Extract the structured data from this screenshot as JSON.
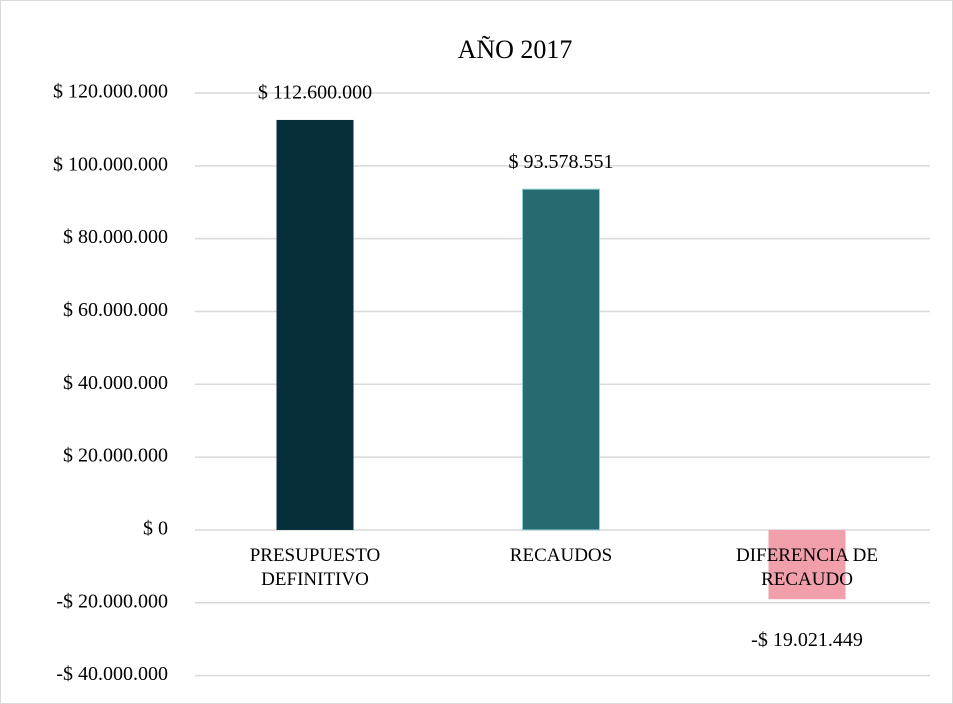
{
  "chart_data": {
    "type": "bar",
    "title": "AÑO 2017",
    "categories": [
      "PRESUPUESTO\nDEFINITIVO",
      "RECAUDOS",
      "DIFERENCIA DE\nRECAUDO"
    ],
    "values": [
      112600000,
      93578551,
      -19021449
    ],
    "value_labels": [
      "$ 112.600.000",
      "$ 93.578.551",
      "-$ 19.021.449"
    ],
    "colors": [
      "#062f3b",
      "#266b70",
      "#f19fab"
    ],
    "ylim": [
      -40000000,
      120000000
    ],
    "yticks": [
      {
        "value": -40000000,
        "label": "-$ 40.000.000"
      },
      {
        "value": -20000000,
        "label": "-$ 20.000.000"
      },
      {
        "value": 0,
        "label": "$ 0"
      },
      {
        "value": 20000000,
        "label": "$ 20.000.000"
      },
      {
        "value": 40000000,
        "label": "$ 40.000.000"
      },
      {
        "value": 60000000,
        "label": "$ 60.000.000"
      },
      {
        "value": 80000000,
        "label": "$ 80.000.000"
      },
      {
        "value": 100000000,
        "label": "$ 100.000.000"
      },
      {
        "value": 120000000,
        "label": "$ 120.000.000"
      }
    ],
    "grid": true
  }
}
